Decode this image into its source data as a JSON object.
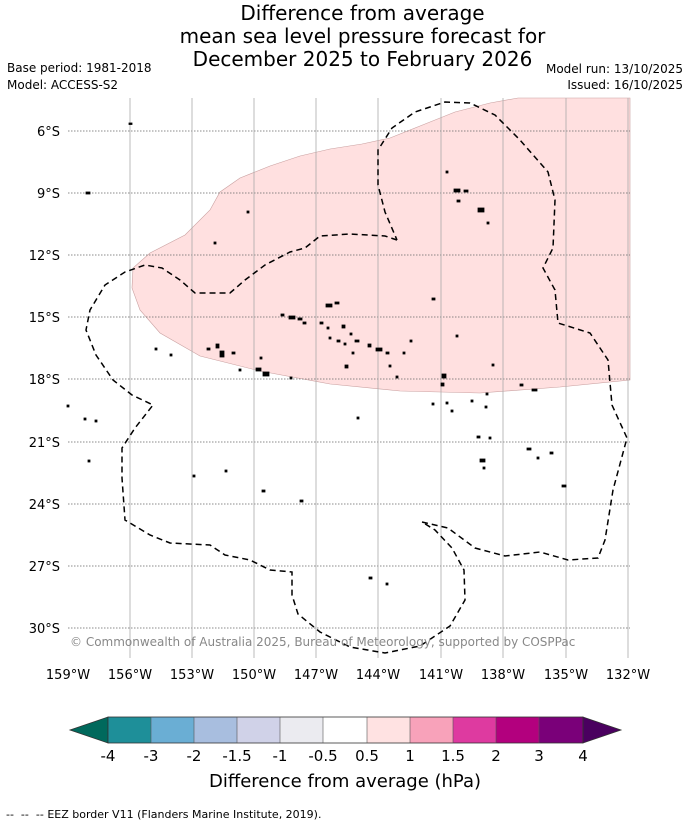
{
  "title": {
    "line1": "Difference from average",
    "line2": "mean sea level pressure forecast for",
    "line3": "December 2025 to February 2026"
  },
  "meta": {
    "base_period": "Base period: 1981-2018",
    "model": "Model: ACCESS-S2",
    "model_run": "Model run: 13/10/2025",
    "issued": "Issued: 16/10/2025"
  },
  "copyright": "© Commonwealth of Australia 2025, Bureau of Meteorology, supported by COSPPac",
  "axes": {
    "lat_labels": [
      "6°S",
      "9°S",
      "12°S",
      "15°S",
      "18°S",
      "21°S",
      "24°S",
      "27°S",
      "30°S"
    ],
    "lon_labels": [
      "159°W",
      "156°W",
      "153°W",
      "150°W",
      "147°W",
      "144°W",
      "141°W",
      "138°W",
      "135°W",
      "132°W"
    ]
  },
  "colorbar": {
    "title": "Difference from average (hPa)",
    "ticks": [
      "-4",
      "-3",
      "-2",
      "-1.5",
      "-1",
      "-0.5",
      "0.5",
      "1",
      "1.5",
      "2",
      "3",
      "4"
    ],
    "colors": {
      "below": "#00695c",
      "c1": "#1e8f99",
      "c2": "#6aaed4",
      "c3": "#a8bedf",
      "c4": "#d0d2e8",
      "c5": "#ebebf0",
      "c6": "#ffffff",
      "c7": "#ffe2e2",
      "c8": "#f8a2ba",
      "c9": "#de3aa0",
      "c10": "#b3007e",
      "c11": "#7a0079",
      "above": "#4a005f"
    }
  },
  "map_colors": {
    "anomaly_area": "#ffe0e0"
  },
  "legend_note": "EEZ border V11 (Flanders Marine Institute, 2019)."
}
